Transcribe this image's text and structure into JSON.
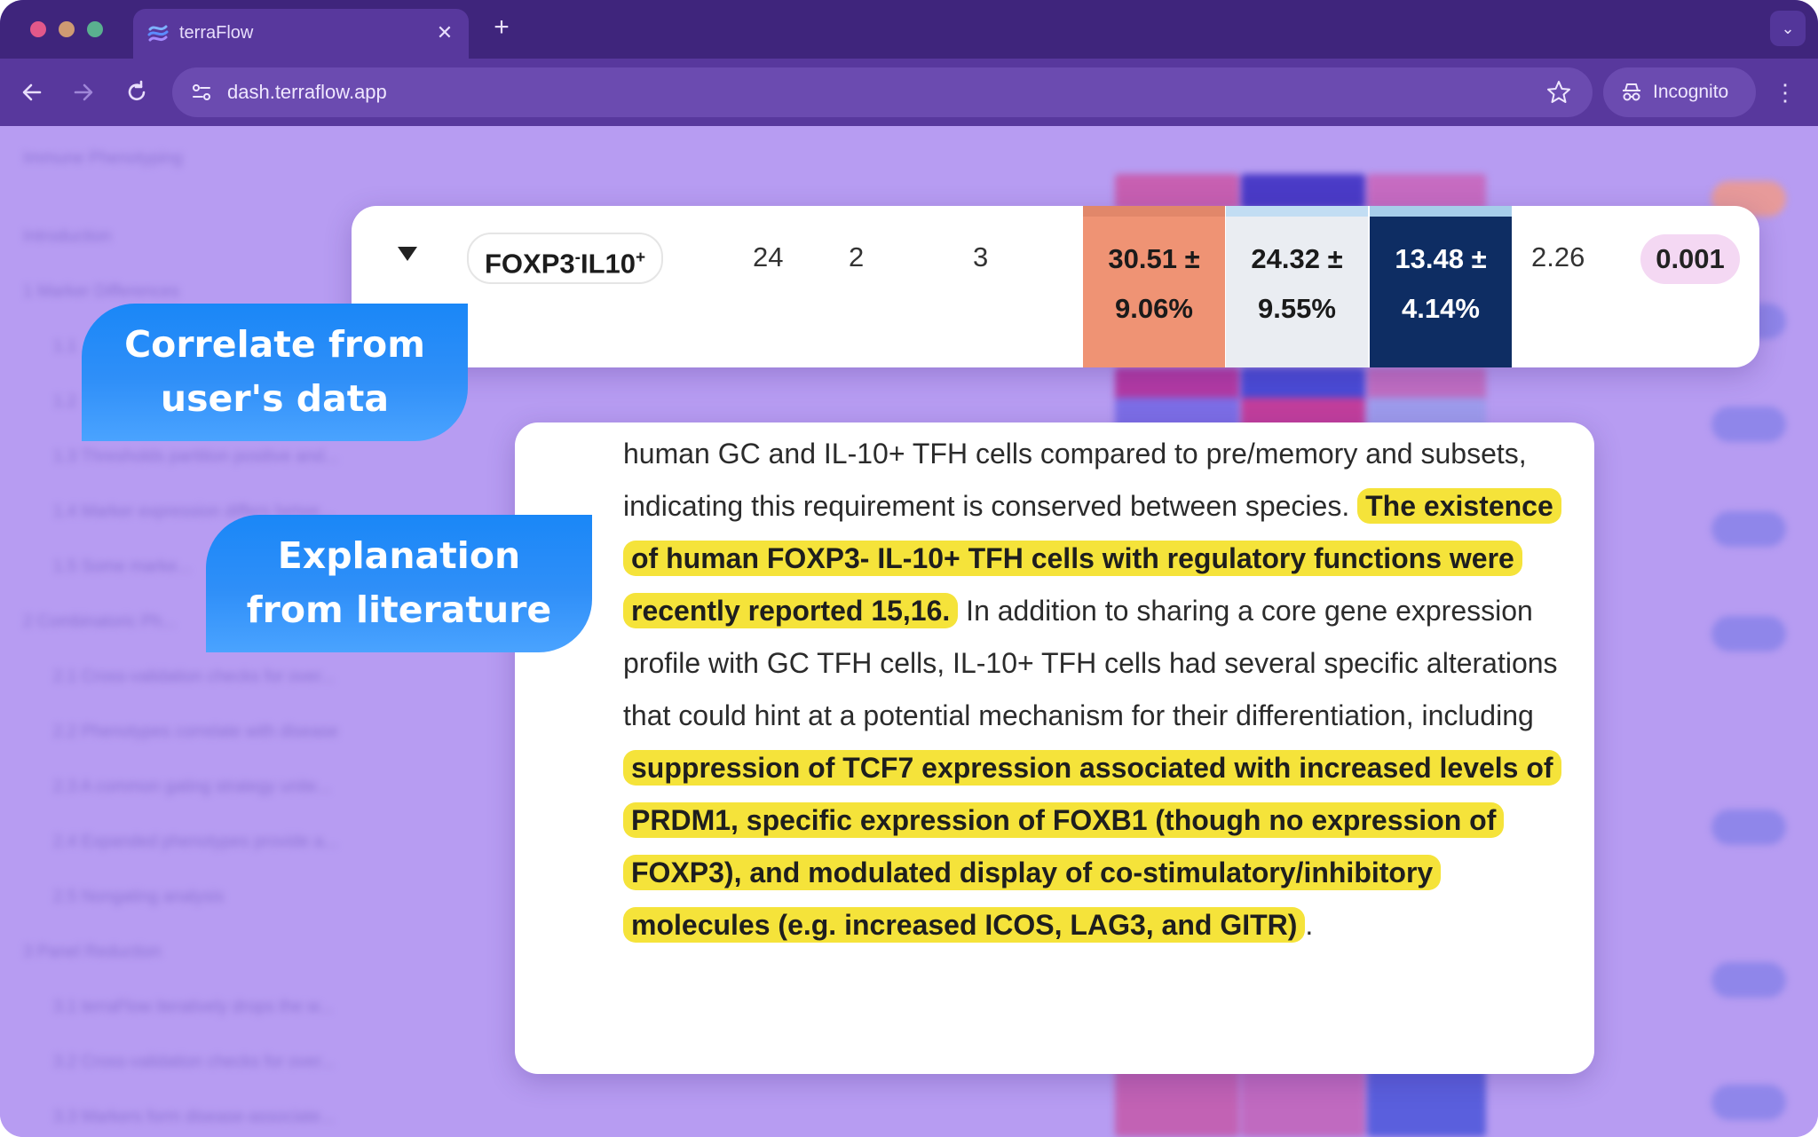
{
  "browser": {
    "tab_title": "terraFlow",
    "url": "dash.terraflow.app",
    "incognito_label": "Incognito"
  },
  "background_page": {
    "toc": [
      "Immune Phenotyping",
      "Introduction",
      "1 Marker Differences",
      "1.1",
      "1.2",
      "1.3 Thresholds partition positive and...",
      "1.4 Marker expression differs betwe...",
      "1.5 Some marke...",
      "2 Combinatoric Ph...",
      "2.1 Cross-validation checks for over...",
      "2.2 Phenotypes correlate with disease",
      "2.3 A common gating strategy unite...",
      "2.4 Expanded phenotypes provide a...",
      "2.5 Nongating analysis",
      "3 Panel Reduction",
      "3.1 terraFlow iteratively drops the w...",
      "3.2 Cross-validation checks for over...",
      "3.3 Markers form disease-associate..."
    ]
  },
  "data_row": {
    "phenotype": "FOXP3",
    "phenotype_sup1": "-",
    "phenotype_mid": "IL10",
    "phenotype_sup2": "+",
    "col1": "24",
    "col2": "2",
    "col3": "3",
    "stat_a_line1": "30.51 ±",
    "stat_a_line2": "9.06%",
    "stat_b_line1": "24.32 ±",
    "stat_b_line2": "9.55%",
    "stat_c_line1": "13.48 ±",
    "stat_c_line2": "4.14%",
    "ratio": "2.26",
    "p_value": "0.001",
    "colors": {
      "stat_a": "#ef9374",
      "stat_b": "#eaedf2",
      "stat_c": "#0e2d63",
      "p_badge": "#f4d8f3"
    }
  },
  "literature": {
    "t1": "human GC and IL-10+ TFH cells compared to pre/memory and subsets, indicating this requirement is conserved between species.",
    "h1": "The existence of human FOXP3- IL-10+ TFH cells with regulatory functions were recently reported 15,16.",
    "t2": "In addition to sharing a core gene expression profile with GC TFH cells, IL-10+ TFH cells had several specific alterations that could hint at a potential mechanism for their differentiation, including",
    "h2": "suppression of TCF7 expression associated with increased levels of PRDM1, specific expression of FOXB1 (though no expression of FOXP3), and modulated display of co-stimulatory/inhibitory molecules (e.g. increased ICOS, LAG3, and GITR)",
    "t3": ".",
    "highlight_color": "#f5e33a"
  },
  "callouts": {
    "correlate_line1": "Correlate from",
    "correlate_line2": "user's data",
    "explanation_line1": "Explanation",
    "explanation_line2": "from literature"
  }
}
